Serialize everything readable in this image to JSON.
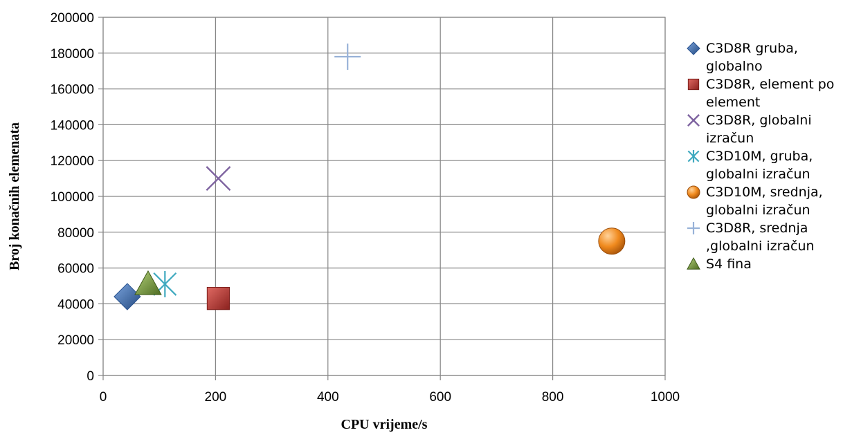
{
  "chart_data": {
    "type": "scatter",
    "title": "",
    "xlabel": "CPU vrijeme/s",
    "ylabel": "Broj konačnih elemenata",
    "xlim": [
      0,
      1000
    ],
    "ylim": [
      0,
      200000
    ],
    "x_ticks": [
      "0",
      "200",
      "400",
      "600",
      "800",
      "1000"
    ],
    "y_ticks": [
      "0",
      "20000",
      "40000",
      "60000",
      "80000",
      "100000",
      "120000",
      "140000",
      "160000",
      "180000",
      "200000"
    ],
    "grid": true,
    "legend_position": "right",
    "series": [
      {
        "name": "C3D8R gruba, globalno",
        "legend_lines": [
          "C3D8R gruba,",
          "globalno"
        ],
        "marker": "diamond",
        "color": "#3a6db5",
        "points": [
          {
            "x": 43,
            "y": 44000
          }
        ]
      },
      {
        "name": "C3D8R, element po element",
        "legend_lines": [
          "C3D8R, element po",
          "element"
        ],
        "marker": "square",
        "color": "#b43a36",
        "points": [
          {
            "x": 205,
            "y": 43000
          }
        ]
      },
      {
        "name": "C3D8R, globalni izračun",
        "legend_lines": [
          "C3D8R, globalni",
          "izračun"
        ],
        "marker": "x",
        "color": "#7e63a0",
        "points": [
          {
            "x": 205,
            "y": 110000
          }
        ]
      },
      {
        "name": "C3D10M, gruba, globalni izračun",
        "legend_lines": [
          "C3D10M, gruba,",
          "globalni izračun"
        ],
        "marker": "star",
        "color": "#3fa9bf",
        "points": [
          {
            "x": 110,
            "y": 51000
          }
        ]
      },
      {
        "name": "C3D10M, srednja, globalni izračun",
        "legend_lines": [
          "C3D10M, srednja,",
          "globalni izračun"
        ],
        "marker": "circle",
        "color": "#f08a1e",
        "points": [
          {
            "x": 905,
            "y": 75000
          }
        ]
      },
      {
        "name": "C3D8R, srednja ,globalni izračun",
        "legend_lines": [
          "C3D8R, srednja",
          ",globalni izračun"
        ],
        "marker": "plus",
        "color": "#98b2d8",
        "points": [
          {
            "x": 435,
            "y": 178000
          }
        ]
      },
      {
        "name": "S4 fina",
        "legend_lines": [
          "S4 fina"
        ],
        "marker": "triangle",
        "color": "#7a9e3c",
        "points": [
          {
            "x": 80,
            "y": 51000
          }
        ]
      }
    ]
  }
}
